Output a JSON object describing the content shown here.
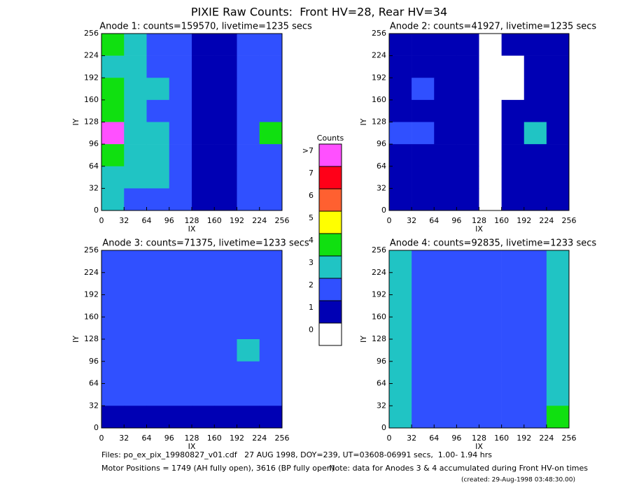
{
  "title": "PIXIE Raw Counts:  Front HV=28, Rear HV=34",
  "colorbar": {
    "title": "Counts",
    "levels": [
      {
        "value": 0,
        "label": "0",
        "color": "#ffffff"
      },
      {
        "value": 1,
        "label": "1",
        "color": "#0000b4"
      },
      {
        "value": 2,
        "label": "2",
        "color": "#3050ff"
      },
      {
        "value": 3,
        "label": "3",
        "color": "#20c4c4"
      },
      {
        "value": 4,
        "label": "4",
        "color": "#10e010"
      },
      {
        "value": 5,
        "label": "5",
        "color": "#ffff00"
      },
      {
        "value": 6,
        "label": "6",
        "color": "#ff6030"
      },
      {
        "value": 7,
        "label": "7",
        "color": "#ff0018"
      },
      {
        "value": 8,
        "label": ">7",
        "color": "#ff50ff"
      }
    ]
  },
  "chart_data": [
    {
      "type": "heatmap",
      "title": "Anode 1: counts=159570, livetime=1235 secs",
      "x_label": "IX",
      "y_label": "IY",
      "xlim": [
        0,
        256
      ],
      "ylim": [
        0,
        256
      ],
      "xticks": [
        0,
        32,
        64,
        96,
        128,
        160,
        192,
        224,
        256
      ],
      "yticks": [
        0,
        32,
        64,
        96,
        128,
        160,
        192,
        224,
        256
      ],
      "z": [
        [
          4,
          3,
          2,
          2,
          1,
          1,
          2,
          2
        ],
        [
          3,
          3,
          2,
          2,
          1,
          1,
          2,
          2
        ],
        [
          4,
          3,
          3,
          2,
          1,
          1,
          2,
          2
        ],
        [
          4,
          3,
          2,
          2,
          1,
          1,
          2,
          2
        ],
        [
          8,
          3,
          3,
          2,
          1,
          1,
          2,
          4
        ],
        [
          4,
          3,
          3,
          2,
          1,
          1,
          2,
          2
        ],
        [
          3,
          3,
          3,
          2,
          1,
          1,
          2,
          2
        ],
        [
          3,
          2,
          2,
          2,
          1,
          1,
          2,
          2
        ]
      ]
    },
    {
      "type": "heatmap",
      "title": "Anode 2: counts=41927, livetime=1235 secs",
      "x_label": "IX",
      "y_label": "IY",
      "xlim": [
        0,
        256
      ],
      "ylim": [
        0,
        256
      ],
      "xticks": [
        0,
        32,
        64,
        96,
        128,
        160,
        192,
        224,
        256
      ],
      "yticks": [
        0,
        32,
        64,
        96,
        128,
        160,
        192,
        224,
        256
      ],
      "z": [
        [
          1,
          1,
          1,
          1,
          0,
          1,
          1,
          1
        ],
        [
          1,
          1,
          1,
          1,
          0,
          0,
          1,
          1
        ],
        [
          1,
          2,
          1,
          1,
          0,
          0,
          1,
          1
        ],
        [
          1,
          1,
          1,
          1,
          0,
          1,
          1,
          1
        ],
        [
          2,
          2,
          1,
          1,
          0,
          1,
          3,
          1
        ],
        [
          1,
          1,
          1,
          1,
          0,
          1,
          1,
          1
        ],
        [
          1,
          1,
          1,
          1,
          0,
          1,
          1,
          1
        ],
        [
          1,
          1,
          1,
          1,
          0,
          1,
          1,
          1
        ]
      ]
    },
    {
      "type": "heatmap",
      "title": "Anode 3: counts=71375, livetime=1233 secs",
      "x_label": "IX",
      "y_label": "IY",
      "xlim": [
        0,
        256
      ],
      "ylim": [
        0,
        256
      ],
      "xticks": [
        0,
        32,
        64,
        96,
        128,
        160,
        192,
        224,
        256
      ],
      "yticks": [
        0,
        32,
        64,
        96,
        128,
        160,
        192,
        224,
        256
      ],
      "z": [
        [
          2,
          2,
          2,
          2,
          2,
          2,
          2,
          2
        ],
        [
          2,
          2,
          2,
          2,
          2,
          2,
          2,
          2
        ],
        [
          2,
          2,
          2,
          2,
          2,
          2,
          2,
          2
        ],
        [
          2,
          2,
          2,
          2,
          2,
          2,
          2,
          2
        ],
        [
          2,
          2,
          2,
          2,
          2,
          2,
          3,
          2
        ],
        [
          2,
          2,
          2,
          2,
          2,
          2,
          2,
          2
        ],
        [
          2,
          2,
          2,
          2,
          2,
          2,
          2,
          2
        ],
        [
          1,
          1,
          1,
          1,
          1,
          1,
          1,
          1
        ]
      ]
    },
    {
      "type": "heatmap",
      "title": "Anode 4: counts=92835, livetime=1233 secs",
      "x_label": "IX",
      "y_label": "IY",
      "xlim": [
        0,
        256
      ],
      "ylim": [
        0,
        256
      ],
      "xticks": [
        0,
        32,
        64,
        96,
        128,
        160,
        192,
        224,
        256
      ],
      "yticks": [
        0,
        32,
        64,
        96,
        128,
        160,
        192,
        224,
        256
      ],
      "z": [
        [
          3,
          2,
          2,
          2,
          2,
          2,
          2,
          3
        ],
        [
          3,
          2,
          2,
          2,
          2,
          2,
          2,
          3
        ],
        [
          3,
          2,
          2,
          2,
          2,
          2,
          2,
          3
        ],
        [
          3,
          2,
          2,
          2,
          2,
          2,
          2,
          3
        ],
        [
          3,
          2,
          2,
          2,
          2,
          2,
          2,
          3
        ],
        [
          3,
          2,
          2,
          2,
          2,
          2,
          2,
          3
        ],
        [
          3,
          2,
          2,
          2,
          2,
          2,
          2,
          3
        ],
        [
          3,
          2,
          2,
          2,
          2,
          2,
          2,
          4
        ]
      ]
    }
  ],
  "footer": {
    "files": "Files: po_ex_pix_19980827_v01.cdf   27 AUG 1998, DOY=239, UT=03608-06991 secs,  1.00- 1.94 hrs",
    "motor": "Motor Positions = 1749 (AH fully open), 3616 (BP fully open)",
    "note": "Note: data for Anodes 3 & 4 accumulated during Front HV-on times",
    "created": "(created: 29-Aug-1998 03:48:30.00)"
  }
}
